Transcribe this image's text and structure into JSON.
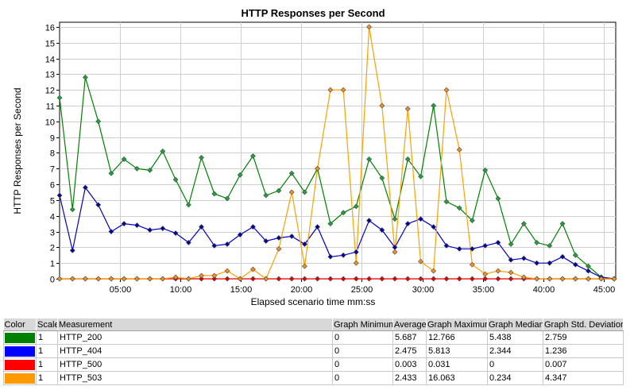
{
  "chart_data": {
    "type": "line",
    "title": "HTTP Responses per Second",
    "xlabel": "Elapsed scenario time mm:ss",
    "ylabel": "HTTP Responses per Second",
    "xlim": [
      0,
      46
    ],
    "ylim": [
      0,
      16.3
    ],
    "x_ticks": [
      {
        "value": 5,
        "label": "05:00"
      },
      {
        "value": 10,
        "label": "10:00"
      },
      {
        "value": 15,
        "label": "15:00"
      },
      {
        "value": 20,
        "label": "20:00"
      },
      {
        "value": 25,
        "label": "25:00"
      },
      {
        "value": 30,
        "label": "30:00"
      },
      {
        "value": 35,
        "label": "35:00"
      },
      {
        "value": 40,
        "label": "40:00"
      },
      {
        "value": 45,
        "label": "45:00"
      }
    ],
    "y_ticks": [
      0,
      1,
      2,
      3,
      4,
      5,
      6,
      7,
      8,
      9,
      10,
      11,
      12,
      13,
      14,
      15,
      16
    ],
    "grid": true,
    "x": [
      0,
      1.07,
      2.13,
      3.2,
      4.27,
      5.33,
      6.4,
      7.47,
      8.53,
      9.6,
      10.67,
      11.73,
      12.8,
      13.87,
      14.93,
      16,
      17.07,
      18.13,
      19.2,
      20.27,
      21.33,
      22.4,
      23.47,
      24.53,
      25.6,
      26.67,
      27.73,
      28.8,
      29.87,
      30.93,
      32,
      33.07,
      34.13,
      35.2,
      36.27,
      37.33,
      38.4,
      39.47,
      40.53,
      41.6,
      42.67,
      43.73,
      44.8,
      45.87
    ],
    "series": [
      {
        "name": "HTTP_200",
        "color": "#008000",
        "marker": "#1ca33c",
        "values": [
          11.5,
          4.4,
          12.8,
          10.0,
          6.7,
          7.6,
          7.0,
          6.9,
          8.1,
          6.3,
          4.7,
          7.7,
          5.4,
          5.1,
          6.6,
          7.8,
          5.3,
          5.6,
          6.7,
          5.5,
          7.0,
          3.5,
          4.2,
          4.6,
          7.6,
          6.4,
          3.8,
          7.6,
          6.5,
          11.0,
          4.9,
          4.5,
          3.7,
          6.9,
          5.1,
          2.2,
          3.5,
          2.3,
          2.1,
          3.5,
          1.5,
          0.8,
          0.1,
          0.0
        ]
      },
      {
        "name": "HTTP_404",
        "color": "#0000c8",
        "marker": "#0000a0",
        "values": [
          5.3,
          1.8,
          5.8,
          4.7,
          3.0,
          3.5,
          3.4,
          3.1,
          3.2,
          2.9,
          2.3,
          3.3,
          2.1,
          2.2,
          2.8,
          3.3,
          2.4,
          2.6,
          2.7,
          2.2,
          3.3,
          1.4,
          1.5,
          1.7,
          3.7,
          3.1,
          2.0,
          3.5,
          3.8,
          3.3,
          2.1,
          1.9,
          1.9,
          2.1,
          2.3,
          1.2,
          1.3,
          1.0,
          1.0,
          1.4,
          0.9,
          0.5,
          0.1,
          0.0
        ]
      },
      {
        "name": "HTTP_500",
        "color": "#ff0000",
        "marker": "#e00000",
        "values": [
          0.0,
          0.0,
          0.0,
          0.0,
          0.0,
          0.0,
          0.0,
          0.0,
          0.0,
          0.0,
          0.0,
          0.0,
          0.0,
          0.0,
          0.0,
          0.0,
          0.0,
          0.0,
          0.0,
          0.0,
          0.0,
          0.0,
          0.0,
          0.0,
          0.0,
          0.0,
          0.0,
          0.0,
          0.0,
          0.0,
          0.0,
          0.0,
          0.0,
          0.0,
          0.0,
          0.0,
          0.0,
          0.0,
          0.0,
          0.0,
          0.0,
          0.0,
          0.0,
          0.0
        ]
      },
      {
        "name": "HTTP_503",
        "color": "#ffa000",
        "marker": "#f09020",
        "values": [
          0.0,
          0.0,
          0.0,
          0.0,
          0.0,
          0.0,
          0.0,
          0.0,
          0.0,
          0.1,
          0.0,
          0.2,
          0.2,
          0.5,
          0.0,
          0.6,
          0.0,
          1.9,
          5.5,
          0.8,
          7.0,
          12.0,
          12.0,
          1.0,
          16.0,
          11.0,
          1.7,
          10.8,
          1.1,
          0.5,
          12.0,
          8.2,
          0.9,
          0.3,
          0.5,
          0.4,
          0.1,
          0.0,
          0.0,
          0.0,
          0.0,
          0.0,
          0.0,
          0.0
        ]
      }
    ]
  },
  "legend_table": {
    "headers": [
      "Color",
      "Scale",
      "Measurement",
      "Graph Minimum",
      "Average",
      "Graph Maximum",
      "Graph Median",
      "Graph Std. Deviation"
    ],
    "rows": [
      {
        "color": "#008000",
        "scale": "1",
        "measurement": "HTTP_200",
        "min": "0",
        "avg": "5.687",
        "max": "12.766",
        "median": "5.438",
        "std": "2.759"
      },
      {
        "color": "#0000ff",
        "scale": "1",
        "measurement": "HTTP_404",
        "min": "0",
        "avg": "2.475",
        "max": "5.813",
        "median": "2.344",
        "std": "1.236"
      },
      {
        "color": "#ff0000",
        "scale": "1",
        "measurement": "HTTP_500",
        "min": "0",
        "avg": "0.003",
        "max": "0.031",
        "median": "0",
        "std": "0.007"
      },
      {
        "color": "#ff9900",
        "scale": "1",
        "measurement": "HTTP_503",
        "min": "0",
        "avg": "2.433",
        "max": "16.063",
        "median": "0.234",
        "std": "4.347"
      }
    ]
  }
}
